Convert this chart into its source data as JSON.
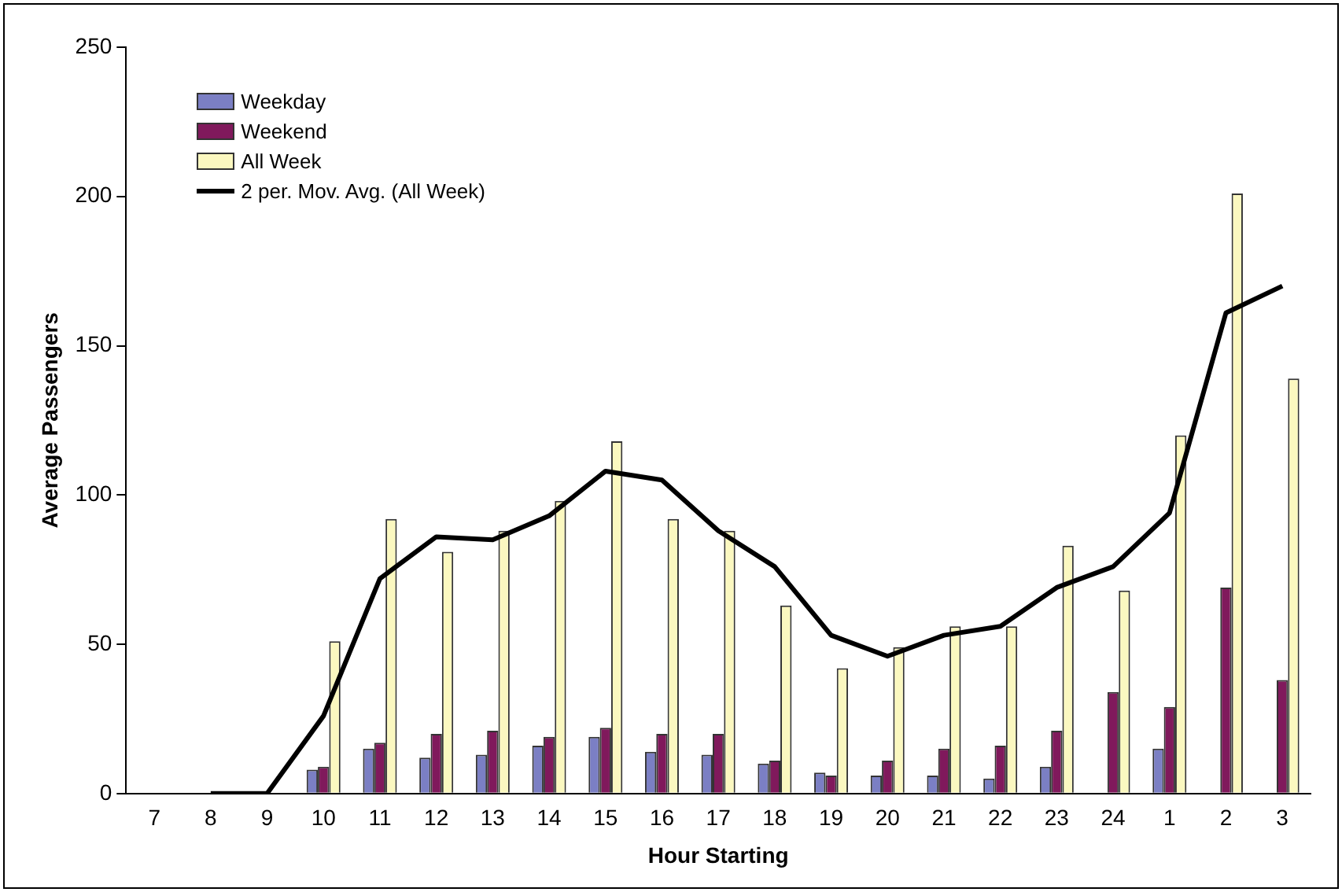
{
  "chart_data": {
    "type": "bar",
    "xlabel": "Hour Starting",
    "ylabel": "Average Passengers",
    "categories": [
      "7",
      "8",
      "9",
      "10",
      "11",
      "12",
      "13",
      "14",
      "15",
      "16",
      "17",
      "18",
      "19",
      "20",
      "21",
      "22",
      "23",
      "24",
      "1",
      "2",
      "3"
    ],
    "series": [
      {
        "name": "Weekday",
        "color": "#7b7fc4",
        "values": [
          0,
          0,
          0,
          8,
          15,
          12,
          13,
          16,
          19,
          14,
          13,
          10,
          7,
          6,
          6,
          5,
          9,
          0,
          15,
          0,
          0
        ]
      },
      {
        "name": "Weekend",
        "color": "#80195c",
        "values": [
          0,
          0,
          0,
          9,
          17,
          20,
          21,
          19,
          22,
          20,
          20,
          11,
          6,
          11,
          15,
          16,
          21,
          34,
          29,
          69,
          38
        ]
      },
      {
        "name": "All Week",
        "color": "#fbf8c0",
        "values": [
          0,
          0,
          0,
          51,
          92,
          81,
          88,
          98,
          118,
          92,
          88,
          63,
          42,
          49,
          56,
          56,
          83,
          68,
          120,
          201,
          139
        ]
      },
      {
        "name": "2 per. Mov. Avg. (All Week)",
        "type": "line",
        "color": "#000000",
        "values": [
          null,
          0,
          0,
          26,
          72,
          86,
          85,
          93,
          108,
          105,
          88,
          76,
          53,
          46,
          53,
          56,
          69,
          76,
          94,
          161,
          170
        ]
      }
    ],
    "ylim": [
      0,
      250
    ],
    "yticks": [
      0,
      50,
      100,
      150,
      200,
      250
    ],
    "grid": false,
    "legend": "top left",
    "marker": "none"
  }
}
